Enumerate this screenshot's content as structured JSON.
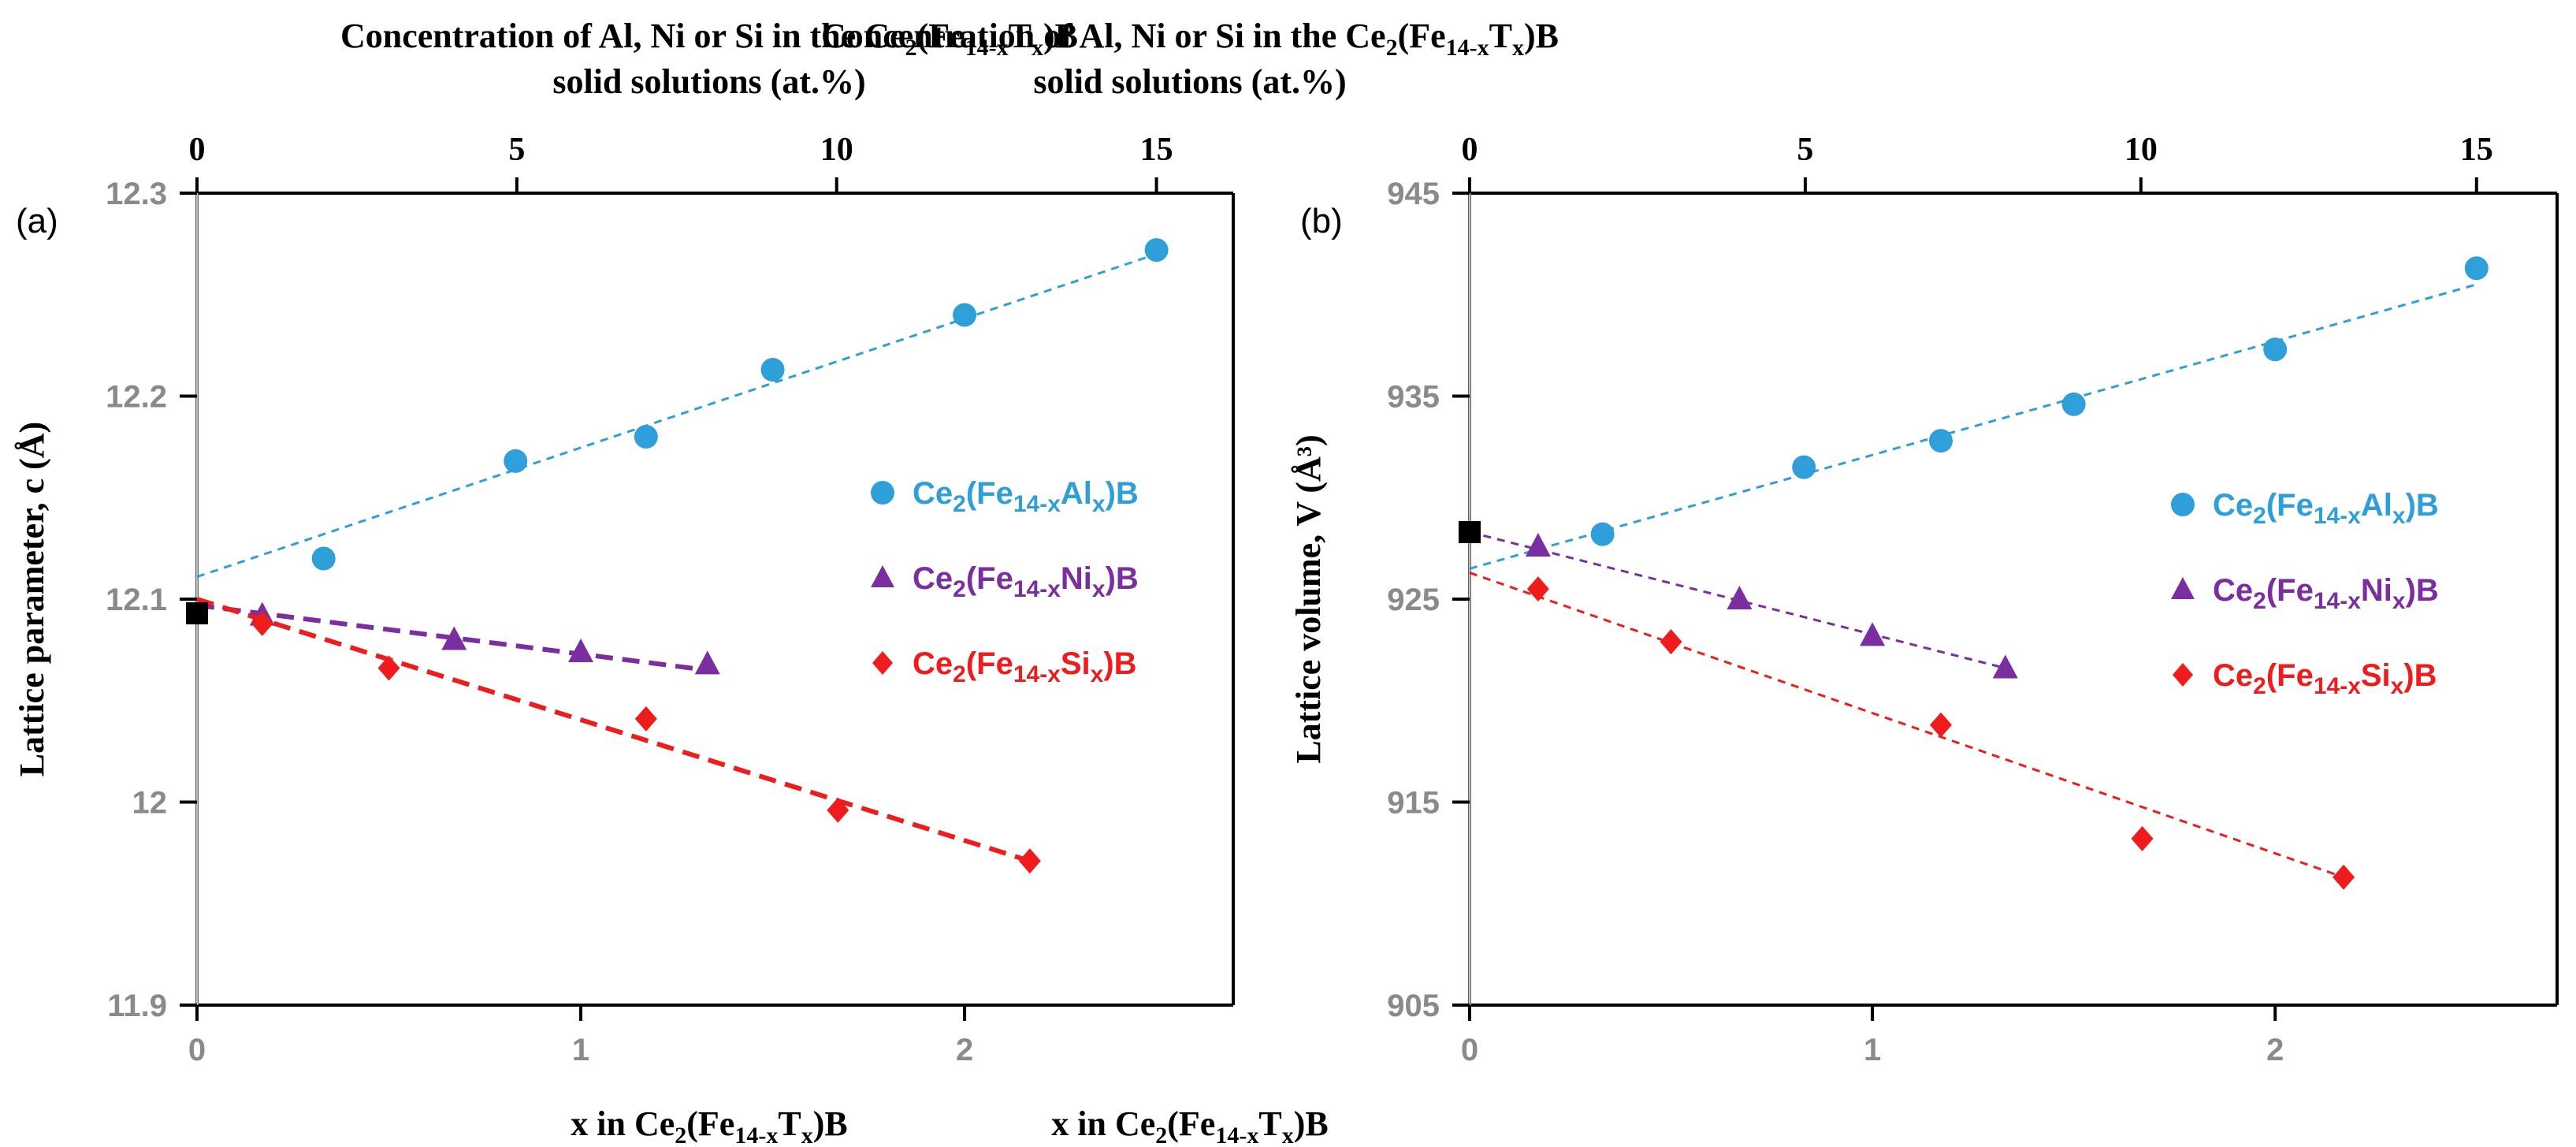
{
  "chart_data": [
    {
      "type": "scatter",
      "panel_label": "(a)",
      "top_title_line1": {
        "pre": "Concentration of Al, Ni or Si in the Ce",
        "sub1": "2",
        "mid": "(Fe",
        "sub2": "14-x",
        "mid2": "T",
        "sub3": "x",
        "post": ")B"
      },
      "top_title_line2": "solid solutions (at.%)",
      "xlabel": {
        "pre": "x in Ce",
        "sub1": "2",
        "mid": "(Fe",
        "sub2": "14-x",
        "mid2": "T",
        "sub3": "x",
        "post": ")B"
      },
      "ylabel": "Lattice parameter, c (Å)",
      "xlim": [
        0,
        2.7
      ],
      "ylim": [
        11.9,
        12.3
      ],
      "x_ticks": [
        "0",
        "1",
        "2"
      ],
      "y_ticks": [
        "11.9",
        "12",
        "12.1",
        "12.2",
        "12.3"
      ],
      "top_ticks": [
        "0",
        "5",
        "10",
        "15"
      ],
      "reference_point": {
        "x": 0,
        "y": 12.093,
        "color": "#000000"
      },
      "series": [
        {
          "name": "Al",
          "legend": {
            "pre": "Ce",
            "sub1": "2",
            "mid": "(Fe",
            "sub2": "14-x",
            "mid2": "Al",
            "sub3": "x",
            "post": ")B"
          },
          "color": "#2e9fd8",
          "marker": "circle",
          "x": [
            0.33,
            0.83,
            1.17,
            1.5,
            2.0,
            2.5
          ],
          "y": [
            12.12,
            12.168,
            12.18,
            12.213,
            12.24,
            12.272
          ],
          "fit": [
            [
              0,
              12.111
            ],
            [
              2.5,
              12.27
            ]
          ]
        },
        {
          "name": "Ni",
          "legend": {
            "pre": "Ce",
            "sub1": "2",
            "mid": "(Fe",
            "sub2": "14-x",
            "mid2": "Ni",
            "sub3": "x",
            "post": ")B"
          },
          "color": "#7a2ea0",
          "marker": "triangle",
          "x": [
            0.17,
            0.67,
            1.0,
            1.33
          ],
          "y": [
            12.092,
            12.08,
            12.074,
            12.068
          ],
          "fit": [
            [
              0,
              12.097
            ],
            [
              1.33,
              12.065
            ]
          ]
        },
        {
          "name": "Si",
          "legend": {
            "pre": "Ce",
            "sub1": "2",
            "mid": "(Fe",
            "sub2": "14-x",
            "mid2": "Si",
            "sub3": "x",
            "post": ")B"
          },
          "color": "#ee1c1c",
          "marker": "diamond",
          "x": [
            0.17,
            0.5,
            1.17,
            1.67,
            2.17
          ],
          "y": [
            12.088,
            12.066,
            12.041,
            11.996,
            11.971
          ],
          "fit": [
            [
              0,
              12.1
            ],
            [
              2.17,
              11.971
            ]
          ]
        }
      ]
    },
    {
      "type": "scatter",
      "panel_label": "(b)",
      "top_title_line1": {
        "pre": "Concentration of Al, Ni or Si in the Ce",
        "sub1": "2",
        "mid": "(Fe",
        "sub2": "14-x",
        "mid2": "T",
        "sub3": "x",
        "post": ")B"
      },
      "top_title_line2": "solid solutions (at.%)",
      "xlabel": {
        "pre": "x in Ce",
        "sub1": "2",
        "mid": "(Fe",
        "sub2": "14-x",
        "mid2": "T",
        "sub3": "x",
        "post": ")B"
      },
      "ylabel": "Lattice volume, V (Å³)",
      "xlim": [
        0,
        2.7
      ],
      "ylim": [
        905,
        945
      ],
      "x_ticks": [
        "0",
        "1",
        "2"
      ],
      "y_ticks": [
        "905",
        "915",
        "925",
        "935",
        "945"
      ],
      "top_ticks": [
        "0",
        "5",
        "10",
        "15"
      ],
      "reference_point": {
        "x": 0,
        "y": 928.3,
        "color": "#000000"
      },
      "series": [
        {
          "name": "Al",
          "legend": {
            "pre": "Ce",
            "sub1": "2",
            "mid": "(Fe",
            "sub2": "14-x",
            "mid2": "Al",
            "sub3": "x",
            "post": ")B"
          },
          "color": "#2e9fd8",
          "marker": "circle",
          "x": [
            0.33,
            0.83,
            1.17,
            1.5,
            2.0,
            2.5
          ],
          "y": [
            928.2,
            931.5,
            932.8,
            934.6,
            937.3,
            941.3
          ],
          "fit": [
            [
              0,
              926.5
            ],
            [
              2.5,
              940.5
            ]
          ]
        },
        {
          "name": "Ni",
          "legend": {
            "pre": "Ce",
            "sub1": "2",
            "mid": "(Fe",
            "sub2": "14-x",
            "mid2": "Ni",
            "sub3": "x",
            "post": ")B"
          },
          "color": "#7a2ea0",
          "marker": "triangle",
          "x": [
            0.17,
            0.67,
            1.0,
            1.33
          ],
          "y": [
            927.6,
            925.0,
            923.2,
            921.6
          ],
          "fit": [
            [
              0,
              928.3
            ],
            [
              1.33,
              921.6
            ]
          ]
        },
        {
          "name": "Si",
          "legend": {
            "pre": "Ce",
            "sub1": "2",
            "mid": "(Fe",
            "sub2": "14-x",
            "mid2": "Si",
            "sub3": "x",
            "post": ")B"
          },
          "color": "#ee1c1c",
          "marker": "diamond",
          "x": [
            0.17,
            0.5,
            1.17,
            1.67,
            2.17
          ],
          "y": [
            925.5,
            922.9,
            918.8,
            913.2,
            911.3
          ],
          "fit": [
            [
              0,
              926.3
            ],
            [
              2.17,
              911.3
            ]
          ]
        }
      ]
    }
  ]
}
